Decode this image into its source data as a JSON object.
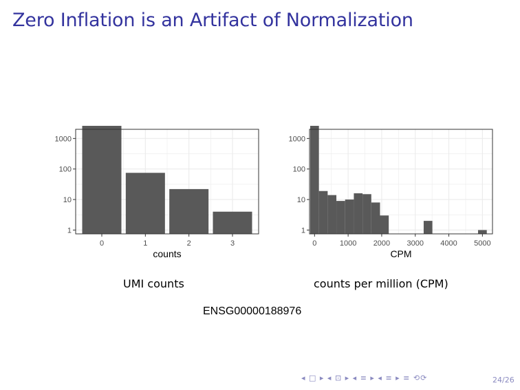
{
  "slide": {
    "title": "Zero Inflation is an Artifact of Normalization",
    "gene": "ENSG00000188976",
    "page": "24/26",
    "nav": "◂ □ ▸ ◂ ⊡ ▸ ◂ ≡ ▸ ◂ ≡ ▸   ≡   ⟲⟳"
  },
  "colors": {
    "title": "#33339e",
    "bar": "#595959",
    "grid": "#ebebeb",
    "panel_border": "#333333",
    "nav": "#8a8ac0"
  },
  "chart_data": [
    {
      "type": "bar",
      "caption": "UMI counts",
      "xlabel": "counts",
      "ylabel": "",
      "y_scale": "log10",
      "ylim": [
        0.75,
        2000
      ],
      "y_ticks": [
        1,
        10,
        100,
        1000
      ],
      "y_tick_labels": [
        "1",
        "10",
        "100",
        "1000"
      ],
      "x_ticks": [
        0,
        1,
        2,
        3
      ],
      "x_tick_labels": [
        "0",
        "1",
        "2",
        "3"
      ],
      "categories": [
        0,
        1,
        2,
        3
      ],
      "values": [
        2600,
        75,
        22,
        4
      ],
      "grid": true
    },
    {
      "type": "histogram",
      "caption": "counts per million (CPM)",
      "xlabel": "CPM",
      "ylabel": "",
      "y_scale": "log10",
      "ylim": [
        0.75,
        2000
      ],
      "xlim": [
        -150,
        5300
      ],
      "y_ticks": [
        1,
        10,
        100,
        1000
      ],
      "y_tick_labels": [
        "1",
        "10",
        "100",
        "1000"
      ],
      "x_ticks": [
        0,
        1000,
        2000,
        3000,
        4000,
        5000
      ],
      "x_tick_labels": [
        "0",
        "1000",
        "2000",
        "3000",
        "4000",
        "5000"
      ],
      "bin_width": 260,
      "bins": [
        {
          "x": 0,
          "count": 2600
        },
        {
          "x": 260,
          "count": 19
        },
        {
          "x": 520,
          "count": 14
        },
        {
          "x": 780,
          "count": 9
        },
        {
          "x": 1040,
          "count": 10
        },
        {
          "x": 1300,
          "count": 16
        },
        {
          "x": 1560,
          "count": 15
        },
        {
          "x": 1820,
          "count": 8
        },
        {
          "x": 2080,
          "count": 3
        },
        {
          "x": 3380,
          "count": 2
        },
        {
          "x": 5000,
          "count": 1
        }
      ],
      "grid": true
    }
  ]
}
